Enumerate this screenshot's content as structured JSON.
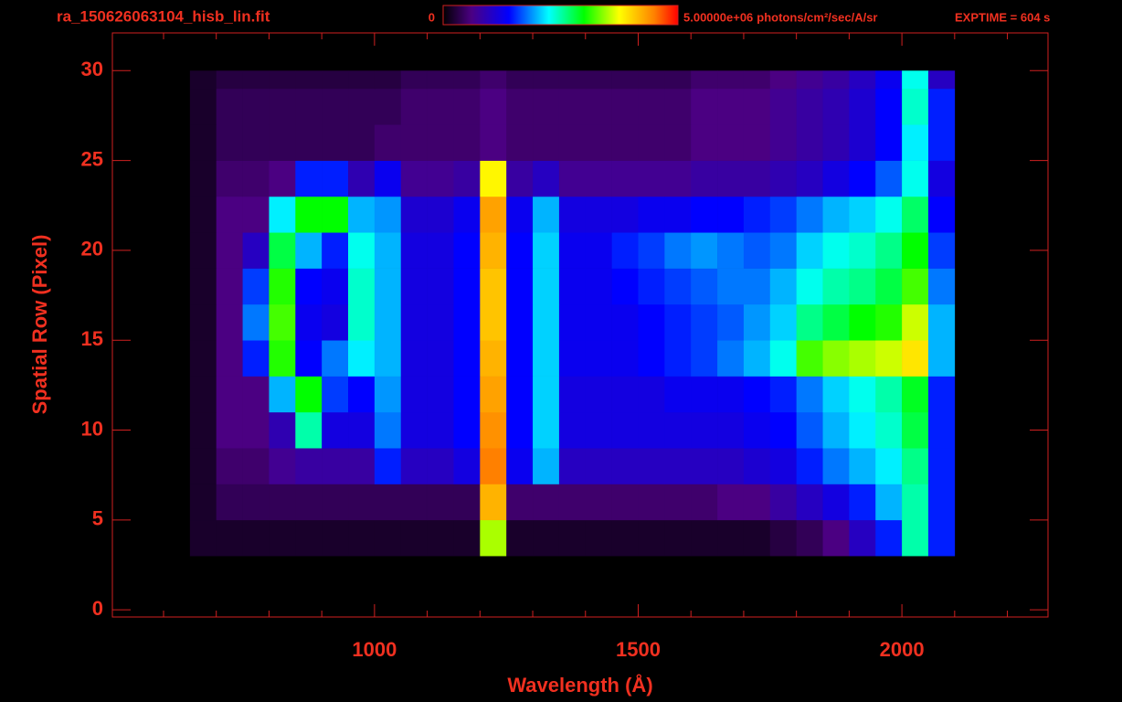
{
  "chart_data": {
    "type": "heatmap",
    "title": "ra_150626063104_hisb_lin.fit",
    "colorbar_unit": "photons/cm²/sec/A/sr",
    "annotation": "EXPTIME = 604 s",
    "x_label": "Wavelength (Å)",
    "y_label": "Spatial Row (Pixel)",
    "xlim": [
      503,
      2277
    ],
    "ylim": [
      -0.4,
      32.1
    ],
    "xticks": [
      1000,
      1500,
      2000
    ],
    "xminorticks": [
      600,
      700,
      800,
      900,
      1100,
      1200,
      1300,
      1400,
      1600,
      1700,
      1800,
      1900,
      2100,
      2200
    ],
    "yticks": [
      0,
      5,
      10,
      15,
      20,
      25,
      30
    ],
    "zlim": [
      0,
      5000000.0
    ],
    "zticks": [
      0,
      {
        "value": 5000000.0,
        "label": "5.00000e+06"
      }
    ],
    "colormap": [
      {
        "stop": 0,
        "color": "#000000"
      },
      {
        "stop": 0.12,
        "color": "#4b0082"
      },
      {
        "stop": 0.28,
        "color": "#0000ff"
      },
      {
        "stop": 0.45,
        "color": "#00ffff"
      },
      {
        "stop": 0.6,
        "color": "#00ff00"
      },
      {
        "stop": 0.75,
        "color": "#ffff00"
      },
      {
        "stop": 0.9,
        "color": "#ff8000"
      },
      {
        "stop": 1,
        "color": "#ff0000"
      }
    ],
    "x_edges": [
      650,
      700,
      750,
      800,
      850,
      900,
      950,
      1000,
      1050,
      1100,
      1150,
      1200,
      1250,
      1300,
      1350,
      1400,
      1450,
      1500,
      1550,
      1600,
      1650,
      1700,
      1750,
      1800,
      1850,
      1900,
      1950,
      2000,
      2050,
      2100
    ],
    "y_edges": [
      3,
      5,
      7,
      9,
      11,
      13,
      15,
      17,
      19,
      21,
      23,
      25,
      27,
      29,
      30
    ],
    "z": [
      [
        200000.0,
        200000.0,
        200000.0,
        200000.0,
        200000.0,
        200000.0,
        200000.0,
        200000.0,
        200000.0,
        200000.0,
        200000.0,
        3500000.0,
        200000.0,
        200000.0,
        200000.0,
        200000.0,
        200000.0,
        200000.0,
        200000.0,
        200000.0,
        200000.0,
        200000.0,
        300000.0,
        400000.0,
        600000.0,
        1000000.0,
        1500000.0,
        2500000.0,
        1500000.0
      ],
      [
        200000.0,
        400000.0,
        400000.0,
        400000.0,
        400000.0,
        400000.0,
        400000.0,
        400000.0,
        400000.0,
        400000.0,
        400000.0,
        4200000.0,
        500000.0,
        500000.0,
        500000.0,
        500000.0,
        500000.0,
        500000.0,
        500000.0,
        500000.0,
        600000.0,
        600000.0,
        800000.0,
        1000000.0,
        1200000.0,
        1500000.0,
        2000000.0,
        2500000.0,
        1500000.0
      ],
      [
        200000.0,
        500000.0,
        500000.0,
        700000.0,
        800000.0,
        800000.0,
        800000.0,
        1500000.0,
        1000000.0,
        1000000.0,
        1200000.0,
        4500000.0,
        1300000.0,
        2000000.0,
        1000000.0,
        1000000.0,
        1000000.0,
        1000000.0,
        1000000.0,
        1000000.0,
        1000000.0,
        1100000.0,
        1200000.0,
        1500000.0,
        1800000.0,
        2000000.0,
        2200000.0,
        2600000.0,
        1500000.0
      ],
      [
        200000.0,
        600000.0,
        600000.0,
        900000.0,
        2500000.0,
        1200000.0,
        1200000.0,
        1800000.0,
        1200000.0,
        1200000.0,
        1400000.0,
        4400000.0,
        1400000.0,
        2100000.0,
        1200000.0,
        1200000.0,
        1200000.0,
        1200000.0,
        1200000.0,
        1200000.0,
        1200000.0,
        1300000.0,
        1400000.0,
        1700000.0,
        2000000.0,
        2200000.0,
        2400000.0,
        2800000.0,
        1500000.0
      ],
      [
        200000.0,
        600000.0,
        600000.0,
        2000000.0,
        3000000.0,
        1600000.0,
        1400000.0,
        1900000.0,
        1200000.0,
        1200000.0,
        1400000.0,
        4300000.0,
        1400000.0,
        2100000.0,
        1200000.0,
        1200000.0,
        1200000.0,
        1200000.0,
        1300000.0,
        1300000.0,
        1300000.0,
        1400000.0,
        1500000.0,
        1800000.0,
        2100000.0,
        2300000.0,
        2500000.0,
        2900000.0,
        1500000.0
      ],
      [
        200000.0,
        600000.0,
        1500000.0,
        3100000.0,
        1400000.0,
        1800000.0,
        2200000.0,
        2000000.0,
        1200000.0,
        1200000.0,
        1400000.0,
        4200000.0,
        1400000.0,
        2100000.0,
        1300000.0,
        1300000.0,
        1300000.0,
        1400000.0,
        1500000.0,
        1600000.0,
        1800000.0,
        2000000.0,
        2300000.0,
        3200000.0,
        3400000.0,
        3500000.0,
        3600000.0,
        3900000.0,
        2000000.0
      ],
      [
        200000.0,
        600000.0,
        1800000.0,
        3200000.0,
        1300000.0,
        1200000.0,
        2400000.0,
        2000000.0,
        1200000.0,
        1200000.0,
        1400000.0,
        4100000.0,
        1400000.0,
        2100000.0,
        1300000.0,
        1300000.0,
        1300000.0,
        1400000.0,
        1500000.0,
        1600000.0,
        1700000.0,
        1900000.0,
        2100000.0,
        2600000.0,
        2800000.0,
        3000000.0,
        3100000.0,
        3600000.0,
        2000000.0
      ],
      [
        200000.0,
        600000.0,
        1600000.0,
        3100000.0,
        1400000.0,
        1300000.0,
        2400000.0,
        2000000.0,
        1200000.0,
        1200000.0,
        1400000.0,
        4100000.0,
        1400000.0,
        2100000.0,
        1300000.0,
        1300000.0,
        1400000.0,
        1500000.0,
        1600000.0,
        1700000.0,
        1800000.0,
        1800000.0,
        2000000.0,
        2300000.0,
        2500000.0,
        2600000.0,
        2800000.0,
        3200000.0,
        1800000.0
      ],
      [
        200000.0,
        600000.0,
        1000000.0,
        2800000.0,
        2000000.0,
        1500000.0,
        2300000.0,
        2000000.0,
        1200000.0,
        1200000.0,
        1400000.0,
        4200000.0,
        1400000.0,
        2100000.0,
        1300000.0,
        1300000.0,
        1500000.0,
        1600000.0,
        1800000.0,
        1900000.0,
        1800000.0,
        1700000.0,
        1800000.0,
        2100000.0,
        2300000.0,
        2400000.0,
        2600000.0,
        3000000.0,
        1600000.0
      ],
      [
        200000.0,
        600000.0,
        600000.0,
        2200000.0,
        3000000.0,
        3000000.0,
        2000000.0,
        1900000.0,
        1100000.0,
        1100000.0,
        1300000.0,
        4300000.0,
        1300000.0,
        2000000.0,
        1200000.0,
        1200000.0,
        1200000.0,
        1300000.0,
        1300000.0,
        1400000.0,
        1400000.0,
        1500000.0,
        1600000.0,
        1800000.0,
        2000000.0,
        2100000.0,
        2300000.0,
        2700000.0,
        1400000.0
      ],
      [
        200000.0,
        500000.0,
        500000.0,
        600000.0,
        1500000.0,
        1500000.0,
        900000.0,
        1300000.0,
        700000.0,
        700000.0,
        800000.0,
        3800000.0,
        800000.0,
        1000000.0,
        700000.0,
        700000.0,
        700000.0,
        700000.0,
        700000.0,
        800000.0,
        800000.0,
        800000.0,
        900000.0,
        1000000.0,
        1200000.0,
        1400000.0,
        1700000.0,
        2300000.0,
        1200000.0
      ],
      [
        200000.0,
        400000.0,
        400000.0,
        400000.0,
        400000.0,
        400000.0,
        400000.0,
        500000.0,
        500000.0,
        500000.0,
        500000.0,
        600000.0,
        500000.0,
        500000.0,
        500000.0,
        500000.0,
        500000.0,
        500000.0,
        500000.0,
        600000.0,
        600000.0,
        600000.0,
        700000.0,
        800000.0,
        900000.0,
        1100000.0,
        1400000.0,
        2200000.0,
        1500000.0
      ],
      [
        200000.0,
        400000.0,
        400000.0,
        400000.0,
        400000.0,
        400000.0,
        400000.0,
        400000.0,
        500000.0,
        500000.0,
        500000.0,
        600000.0,
        500000.0,
        500000.0,
        500000.0,
        500000.0,
        500000.0,
        500000.0,
        500000.0,
        600000.0,
        600000.0,
        600000.0,
        700000.0,
        800000.0,
        900000.0,
        1100000.0,
        1400000.0,
        2400000.0,
        1500000.0
      ],
      [
        200000.0,
        300000.0,
        300000.0,
        300000.0,
        300000.0,
        300000.0,
        300000.0,
        300000.0,
        400000.0,
        400000.0,
        400000.0,
        500000.0,
        400000.0,
        400000.0,
        400000.0,
        400000.0,
        400000.0,
        400000.0,
        400000.0,
        500000.0,
        500000.0,
        500000.0,
        600000.0,
        700000.0,
        800000.0,
        1000000.0,
        1300000.0,
        2300000.0,
        1000000.0
      ]
    ]
  }
}
